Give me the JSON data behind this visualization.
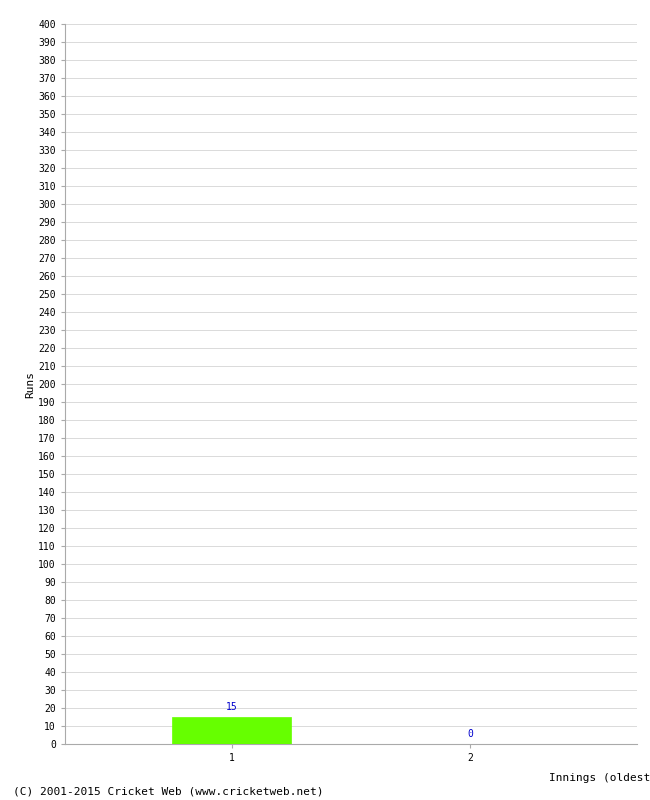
{
  "title": "",
  "xlabel": "Innings (oldest to newest)",
  "ylabel": "Runs",
  "categories": [
    1,
    2
  ],
  "values": [
    15,
    0
  ],
  "bar_colors": [
    "#66ff00",
    "#66ff00"
  ],
  "value_labels": [
    "15",
    "0"
  ],
  "value_label_color": "#0000cc",
  "ylim": [
    0,
    400
  ],
  "ytick_step": 10,
  "background_color": "#ffffff",
  "grid_color": "#cccccc",
  "footer": "(C) 2001-2015 Cricket Web (www.cricketweb.net)",
  "bar_width": 0.5,
  "axis_fontsize": 8,
  "tick_fontsize": 7,
  "footer_fontsize": 8,
  "xlim_left": 0.3,
  "xlim_right": 2.7
}
